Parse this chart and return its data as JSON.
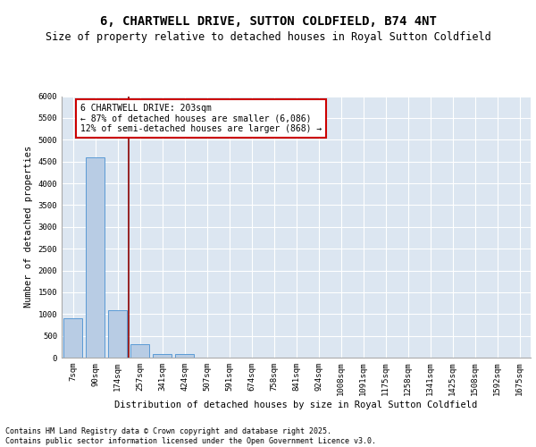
{
  "title": "6, CHARTWELL DRIVE, SUTTON COLDFIELD, B74 4NT",
  "subtitle": "Size of property relative to detached houses in Royal Sutton Coldfield",
  "xlabel": "Distribution of detached houses by size in Royal Sutton Coldfield",
  "ylabel": "Number of detached properties",
  "categories": [
    "7sqm",
    "90sqm",
    "174sqm",
    "257sqm",
    "341sqm",
    "424sqm",
    "507sqm",
    "591sqm",
    "674sqm",
    "758sqm",
    "841sqm",
    "924sqm",
    "1008sqm",
    "1091sqm",
    "1175sqm",
    "1258sqm",
    "1341sqm",
    "1425sqm",
    "1508sqm",
    "1592sqm",
    "1675sqm"
  ],
  "values": [
    900,
    4600,
    1080,
    300,
    90,
    90,
    0,
    0,
    0,
    0,
    0,
    0,
    0,
    0,
    0,
    0,
    0,
    0,
    0,
    0,
    0
  ],
  "bar_color": "#b8cce4",
  "bar_edge_color": "#5b9bd5",
  "bg_color": "#dce6f1",
  "grid_color": "#ffffff",
  "vline_x": 2.5,
  "vline_color": "#8b0000",
  "annotation_text": "6 CHARTWELL DRIVE: 203sqm\n← 87% of detached houses are smaller (6,086)\n12% of semi-detached houses are larger (868) →",
  "annotation_box_color": "white",
  "annotation_border_color": "#cc0000",
  "ylim": [
    0,
    6000
  ],
  "yticks": [
    0,
    500,
    1000,
    1500,
    2000,
    2500,
    3000,
    3500,
    4000,
    4500,
    5000,
    5500,
    6000
  ],
  "footer": "Contains HM Land Registry data © Crown copyright and database right 2025.\nContains public sector information licensed under the Open Government Licence v3.0.",
  "title_fontsize": 10,
  "subtitle_fontsize": 8.5,
  "axis_label_fontsize": 7.5,
  "tick_fontsize": 6.5,
  "annotation_fontsize": 7,
  "footer_fontsize": 6
}
